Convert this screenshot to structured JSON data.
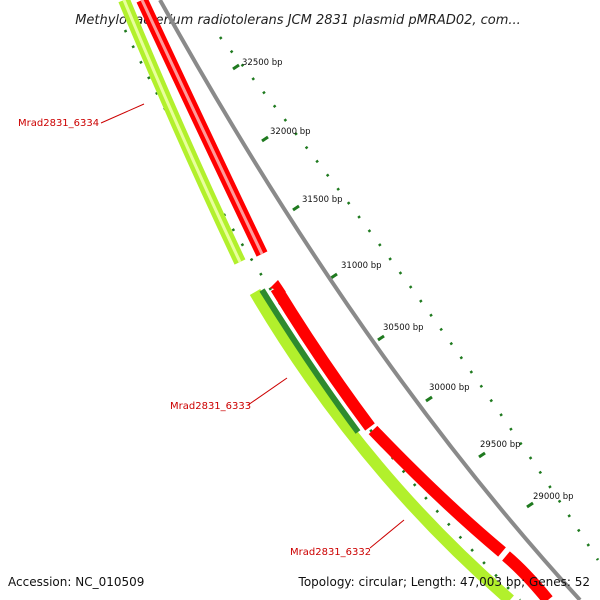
{
  "title": "Methylobacterium radiotolerans JCM 2831 plasmid pMRAD02, com...",
  "footer": {
    "accession": "Accession: NC_010509",
    "summary": "Topology: circular; Length: 47,003 bp; Genes: 52"
  },
  "ticks": [
    {
      "bp": 32500,
      "label": "32500 bp"
    },
    {
      "bp": 32000,
      "label": "32000 bp"
    },
    {
      "bp": 31500,
      "label": "31500 bp"
    },
    {
      "bp": 31000,
      "label": "31000 bp"
    },
    {
      "bp": 30500,
      "label": "30500 bp"
    },
    {
      "bp": 30000,
      "label": "30000 bp"
    },
    {
      "bp": 29500,
      "label": "29500 bp"
    },
    {
      "bp": 29000,
      "label": "29000 bp"
    }
  ],
  "genes": [
    {
      "name": "Mrad2831_6334"
    },
    {
      "name": "Mrad2831_6333"
    },
    {
      "name": "Mrad2831_6332"
    }
  ],
  "colors": {
    "cds_reverse": "#ff0000",
    "cds_forward": "#b2f02c",
    "highlight": "#2e8b2e",
    "backbone": "#8a8a8a",
    "tick": "#1f7a1f",
    "label": "#cc0000"
  }
}
